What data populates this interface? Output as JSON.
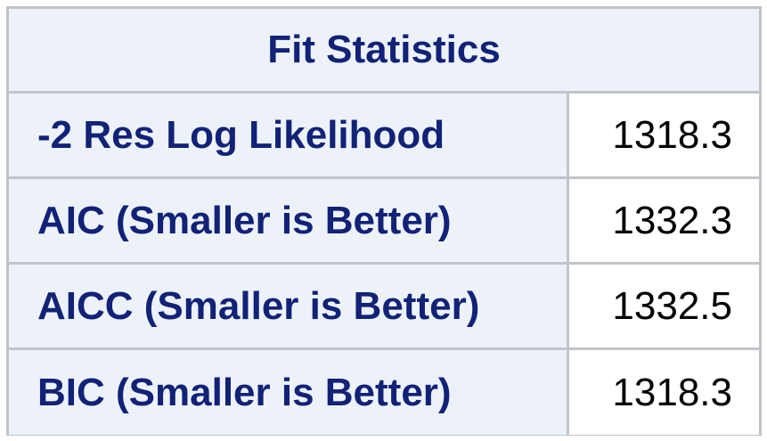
{
  "table": {
    "title": "Fit Statistics",
    "rows": [
      {
        "label": "-2 Res Log Likelihood",
        "value": "1318.3"
      },
      {
        "label": "AIC (Smaller is Better)",
        "value": "1332.3"
      },
      {
        "label": "AICC (Smaller is Better)",
        "value": "1332.5"
      },
      {
        "label": "BIC (Smaller is Better)",
        "value": "1318.3"
      }
    ]
  },
  "colors": {
    "header_text": "#112277",
    "header_bg": "#edf2f9",
    "border": "#c1c4c9",
    "value_text": "#000000",
    "value_bg": "#ffffff"
  }
}
